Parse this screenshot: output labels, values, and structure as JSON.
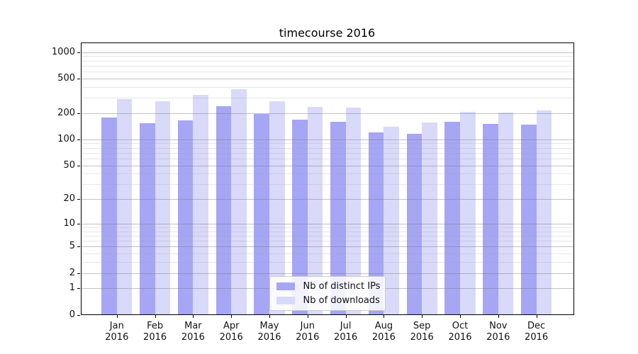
{
  "chart_data": {
    "type": "bar",
    "title": "timecourse 2016",
    "categories": [
      "Jan",
      "Feb",
      "Mar",
      "Apr",
      "May",
      "Jun",
      "Jul",
      "Aug",
      "Sep",
      "Oct",
      "Nov",
      "Dec"
    ],
    "category_year": "2016",
    "series": [
      {
        "name": "Nb of distinct IPs",
        "color": "#a6a6f5",
        "values": [
          180,
          155,
          165,
          243,
          197,
          170,
          160,
          120,
          115,
          160,
          150,
          148
        ]
      },
      {
        "name": "Nb of downloads",
        "color": "#d9d9fa",
        "values": [
          290,
          276,
          325,
          380,
          276,
          238,
          234,
          141,
          156,
          209,
          205,
          216
        ]
      }
    ],
    "yscale": "log1p",
    "ylim": [
      0,
      1293
    ],
    "yticks": [
      {
        "value": 0,
        "label": "0"
      },
      {
        "value": 1,
        "label": "1"
      },
      {
        "value": 2,
        "label": "2"
      },
      {
        "value": 5,
        "label": "5"
      },
      {
        "value": 10,
        "label": "10"
      },
      {
        "value": 20,
        "label": "20"
      },
      {
        "value": 50,
        "label": "50"
      },
      {
        "value": 100,
        "label": "100"
      },
      {
        "value": 200,
        "label": "200"
      },
      {
        "value": 500,
        "label": "500"
      },
      {
        "value": 1000,
        "label": "1000"
      }
    ],
    "minor_gridlines": [
      3,
      4,
      6,
      7,
      8,
      9,
      30,
      40,
      60,
      70,
      80,
      90,
      300,
      400,
      600,
      700,
      800,
      900
    ],
    "grid": "both",
    "legend_position": "lower center",
    "colors": {
      "major_grid": "#b0b0b0",
      "minor_grid": "#e0e0e0",
      "axis": "#000000",
      "text": "#111111",
      "background": "#ffffff"
    }
  }
}
